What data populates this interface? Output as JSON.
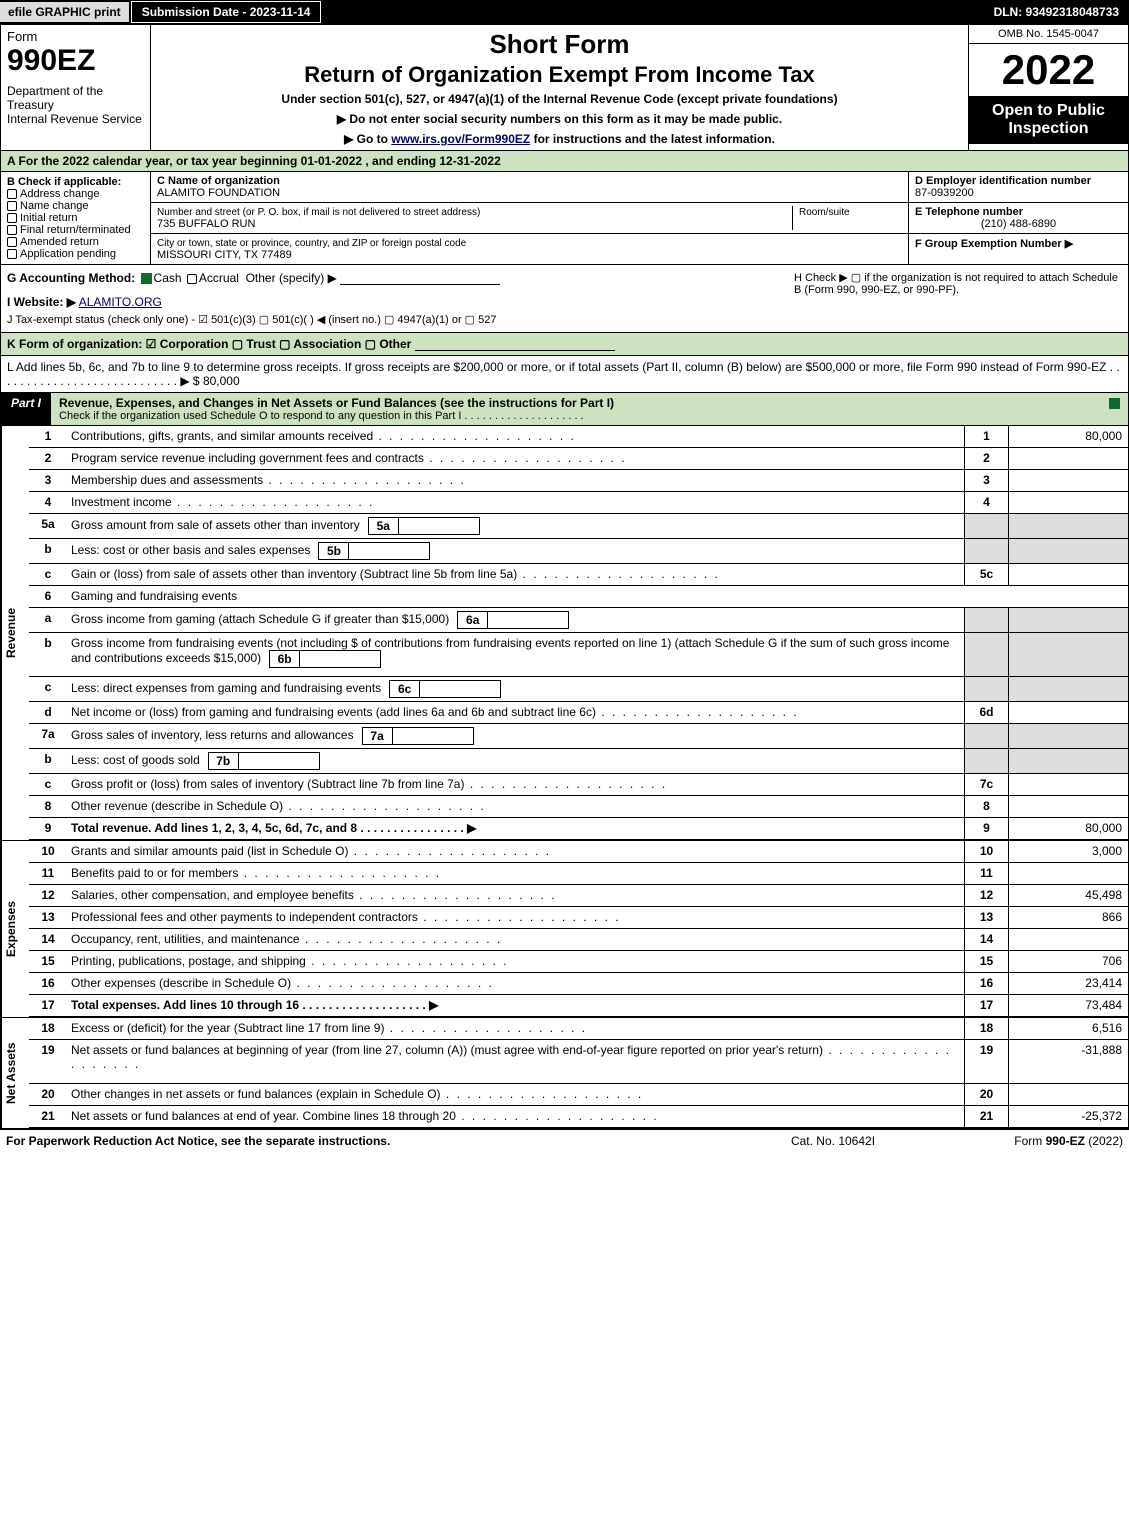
{
  "topbar": {
    "efile": "efile GRAPHIC print",
    "subdate": "Submission Date - 2023-11-14",
    "dln": "DLN: 93492318048733"
  },
  "header": {
    "form_word": "Form",
    "form_num": "990EZ",
    "dept": "Department of the Treasury\nInternal Revenue Service",
    "short": "Short Form",
    "ret": "Return of Organization Exempt From Income Tax",
    "under": "Under section 501(c), 527, or 4947(a)(1) of the Internal Revenue Code (except private foundations)",
    "note1": "▶ Do not enter social security numbers on this form as it may be made public.",
    "note2_pre": "▶ Go to ",
    "note2_link": "www.irs.gov/Form990EZ",
    "note2_post": " for instructions and the latest information.",
    "omb": "OMB No. 1545-0047",
    "year": "2022",
    "open": "Open to Public Inspection"
  },
  "rowA": "A  For the 2022 calendar year, or tax year beginning 01-01-2022 , and ending 12-31-2022",
  "secB": {
    "hdr": "B  Check if applicable:",
    "items": [
      "Address change",
      "Name change",
      "Initial return",
      "Final return/terminated",
      "Amended return",
      "Application pending"
    ],
    "c_label": "C Name of organization",
    "c_name": "ALAMITO FOUNDATION",
    "addr_label": "Number and street (or P. O. box, if mail is not delivered to street address)",
    "room_label": "Room/suite",
    "addr": "735 BUFFALO RUN",
    "city_label": "City or town, state or province, country, and ZIP or foreign postal code",
    "city": "MISSOURI CITY, TX  77489",
    "d_label": "D Employer identification number",
    "d_val": "87-0939200",
    "e_label": "E Telephone number",
    "e_val": "(210) 488-6890",
    "f_label": "F Group Exemption Number  ▶"
  },
  "rowGH": {
    "g": "G Accounting Method:",
    "g_cash": "Cash",
    "g_accr": "Accrual",
    "g_other": "Other (specify) ▶",
    "h": "H  Check ▶  ▢  if the organization is not required to attach Schedule B (Form 990, 990-EZ, or 990-PF).",
    "i_pre": "I Website: ▶",
    "i_link": "ALAMITO.ORG",
    "j": "J Tax-exempt status (check only one) -  ☑ 501(c)(3)  ▢ 501(c)(  ) ◀ (insert no.)  ▢ 4947(a)(1) or  ▢ 527"
  },
  "rowK": "K Form of organization:  ☑ Corporation  ▢ Trust  ▢ Association  ▢ Other",
  "rowL": {
    "text": "L Add lines 5b, 6c, and 7b to line 9 to determine gross receipts. If gross receipts are $200,000 or more, or if total assets (Part II, column (B) below) are $500,000 or more, file Form 990 instead of Form 990-EZ  .  .  .  .  .  .  .  .  .  .  .  .  .  .  .  .  .  .  .  .  .  .  .  .  .  .  .  .  ▶ $ ",
    "val": "80,000"
  },
  "part1": {
    "tag": "Part I",
    "title": "Revenue, Expenses, and Changes in Net Assets or Fund Balances (see the instructions for Part I)",
    "sub": "Check if the organization used Schedule O to respond to any question in this Part I  .  .  .  .  .  .  .  .  .  .  .  .  .  .  .  .  .  .  .  ."
  },
  "revenue": {
    "label": "Revenue",
    "lines": [
      {
        "n": "1",
        "d": "Contributions, gifts, grants, and similar amounts received",
        "box": "1",
        "v": "80,000"
      },
      {
        "n": "2",
        "d": "Program service revenue including government fees and contracts",
        "box": "2",
        "v": ""
      },
      {
        "n": "3",
        "d": "Membership dues and assessments",
        "box": "3",
        "v": ""
      },
      {
        "n": "4",
        "d": "Investment income",
        "box": "4",
        "v": ""
      },
      {
        "n": "5a",
        "d": "Gross amount from sale of assets other than inventory",
        "mini": "5a",
        "shade": true
      },
      {
        "n": "b",
        "d": "Less: cost or other basis and sales expenses",
        "mini": "5b",
        "shade": true
      },
      {
        "n": "c",
        "d": "Gain or (loss) from sale of assets other than inventory (Subtract line 5b from line 5a)",
        "box": "5c",
        "v": ""
      },
      {
        "n": "6",
        "d": "Gaming and fundraising events",
        "noright": true
      },
      {
        "n": "a",
        "d": "Gross income from gaming (attach Schedule G if greater than $15,000)",
        "mini": "6a",
        "shade": true
      },
      {
        "n": "b",
        "d": "Gross income from fundraising events (not including $                    of contributions from fundraising events reported on line 1) (attach Schedule G if the sum of such gross income and contributions exceeds $15,000)",
        "mini": "6b",
        "shade": true,
        "tall": true
      },
      {
        "n": "c",
        "d": "Less: direct expenses from gaming and fundraising events",
        "mini": "6c",
        "shade": true
      },
      {
        "n": "d",
        "d": "Net income or (loss) from gaming and fundraising events (add lines 6a and 6b and subtract line 6c)",
        "box": "6d",
        "v": ""
      },
      {
        "n": "7a",
        "d": "Gross sales of inventory, less returns and allowances",
        "mini": "7a",
        "shade": true
      },
      {
        "n": "b",
        "d": "Less: cost of goods sold",
        "mini": "7b",
        "shade": true
      },
      {
        "n": "c",
        "d": "Gross profit or (loss) from sales of inventory (Subtract line 7b from line 7a)",
        "box": "7c",
        "v": ""
      },
      {
        "n": "8",
        "d": "Other revenue (describe in Schedule O)",
        "box": "8",
        "v": ""
      },
      {
        "n": "9",
        "d": "Total revenue. Add lines 1, 2, 3, 4, 5c, 6d, 7c, and 8   .   .   .   .   .   .   .   .   .   .   .   .   .   .   .   .   ▶",
        "box": "9",
        "v": "80,000",
        "bold": true
      }
    ]
  },
  "expenses": {
    "label": "Expenses",
    "lines": [
      {
        "n": "10",
        "d": "Grants and similar amounts paid (list in Schedule O)",
        "box": "10",
        "v": "3,000"
      },
      {
        "n": "11",
        "d": "Benefits paid to or for members",
        "box": "11",
        "v": ""
      },
      {
        "n": "12",
        "d": "Salaries, other compensation, and employee benefits",
        "box": "12",
        "v": "45,498"
      },
      {
        "n": "13",
        "d": "Professional fees and other payments to independent contractors",
        "box": "13",
        "v": "866"
      },
      {
        "n": "14",
        "d": "Occupancy, rent, utilities, and maintenance",
        "box": "14",
        "v": ""
      },
      {
        "n": "15",
        "d": "Printing, publications, postage, and shipping",
        "box": "15",
        "v": "706"
      },
      {
        "n": "16",
        "d": "Other expenses (describe in Schedule O)",
        "box": "16",
        "v": "23,414"
      },
      {
        "n": "17",
        "d": "Total expenses. Add lines 10 through 16   .   .   .   .   .   .   .   .   .   .   .   .   .   .   .   .   .   .   .   ▶",
        "box": "17",
        "v": "73,484",
        "bold": true
      }
    ]
  },
  "netassets": {
    "label": "Net Assets",
    "lines": [
      {
        "n": "18",
        "d": "Excess or (deficit) for the year (Subtract line 17 from line 9)",
        "box": "18",
        "v": "6,516"
      },
      {
        "n": "19",
        "d": "Net assets or fund balances at beginning of year (from line 27, column (A)) (must agree with end-of-year figure reported on prior year's return)",
        "box": "19",
        "v": "-31,888",
        "tall": true
      },
      {
        "n": "20",
        "d": "Other changes in net assets or fund balances (explain in Schedule O)",
        "box": "20",
        "v": ""
      },
      {
        "n": "21",
        "d": "Net assets or fund balances at end of year. Combine lines 18 through 20",
        "box": "21",
        "v": "-25,372"
      }
    ]
  },
  "footer": {
    "l": "For Paperwork Reduction Act Notice, see the separate instructions.",
    "c": "Cat. No. 10642I",
    "r_pre": "Form ",
    "r_b": "990-EZ",
    "r_post": " (2022)"
  }
}
